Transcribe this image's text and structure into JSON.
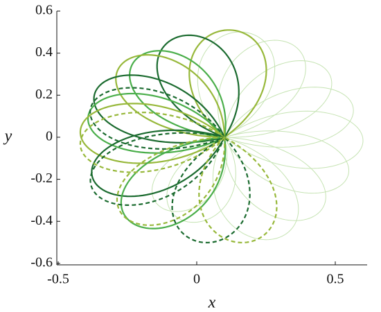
{
  "chart_data": {
    "type": "petals",
    "xlabel": "x",
    "ylabel": "y",
    "center": [
      0.1,
      0
    ],
    "xlim": [
      -0.505,
      0.615
    ],
    "ylim": [
      -0.607,
      0.6
    ],
    "xticks": [
      -0.5,
      0,
      0.5
    ],
    "yticks": [
      -0.6,
      -0.4,
      -0.2,
      0,
      0.2,
      0.4,
      0.6
    ],
    "series": [
      {
        "color": "#c5e3b2",
        "dash": false,
        "x": 0.17,
        "y": 0.5
      },
      {
        "color": "#c5e3b2",
        "dash": false,
        "x": 0.33,
        "y": 0.45
      },
      {
        "color": "#c5e3b2",
        "dash": false,
        "x": 0.46,
        "y": 0.33
      },
      {
        "color": "#c5e3b2",
        "dash": false,
        "x": 0.56,
        "y": 0.16
      },
      {
        "color": "#c5e3b2",
        "dash": false,
        "x": 0.6,
        "y": -0.02
      },
      {
        "color": "#c5e3b2",
        "dash": false,
        "x": 0.54,
        "y": -0.2
      },
      {
        "color": "#c5e3b2",
        "dash": false,
        "x": 0.43,
        "y": -0.37
      },
      {
        "color": "#c5e3b2",
        "dash": false,
        "x": 0.29,
        "y": -0.48
      },
      {
        "color": "#c5e3b2",
        "dash": false,
        "x": -0.12,
        "y": -0.34
      },
      {
        "color": "#c5e3b2",
        "dash": false,
        "x": -0.04,
        "y": -0.4
      },
      {
        "color": "#97b83a",
        "dash": false,
        "x": 0.12,
        "y": 0.51
      },
      {
        "color": "#1b6b2f",
        "dash": false,
        "x": -0.06,
        "y": 0.48
      },
      {
        "color": "#4aae4a",
        "dash": false,
        "x": -0.2,
        "y": 0.39
      },
      {
        "color": "#97b83a",
        "dash": false,
        "x": -0.26,
        "y": 0.36
      },
      {
        "color": "#1b6b2f",
        "dash": false,
        "x": -0.36,
        "y": 0.23
      },
      {
        "color": "#4aae4a",
        "dash": false,
        "x": -0.39,
        "y": 0.11
      },
      {
        "color": "#97b83a",
        "dash": false,
        "x": -0.42,
        "y": 0.03
      },
      {
        "color": "#1b6b2f",
        "dash": false,
        "x": -0.37,
        "y": -0.21
      },
      {
        "color": "#4aae4a",
        "dash": false,
        "x": -0.23,
        "y": -0.41
      },
      {
        "color": "#1b6b2f",
        "dash": true,
        "x": -0.38,
        "y": 0.15
      },
      {
        "color": "#97b83a",
        "dash": true,
        "x": -0.42,
        "y": -0.04
      },
      {
        "color": "#1b6b2f",
        "dash": true,
        "x": -0.37,
        "y": -0.26
      },
      {
        "color": "#97b83a",
        "dash": true,
        "x": -0.25,
        "y": -0.39
      },
      {
        "color": "#1b6b2f",
        "dash": true,
        "x": 0.02,
        "y": -0.5
      },
      {
        "color": "#97b83a",
        "dash": true,
        "x": 0.18,
        "y": -0.5
      }
    ]
  }
}
